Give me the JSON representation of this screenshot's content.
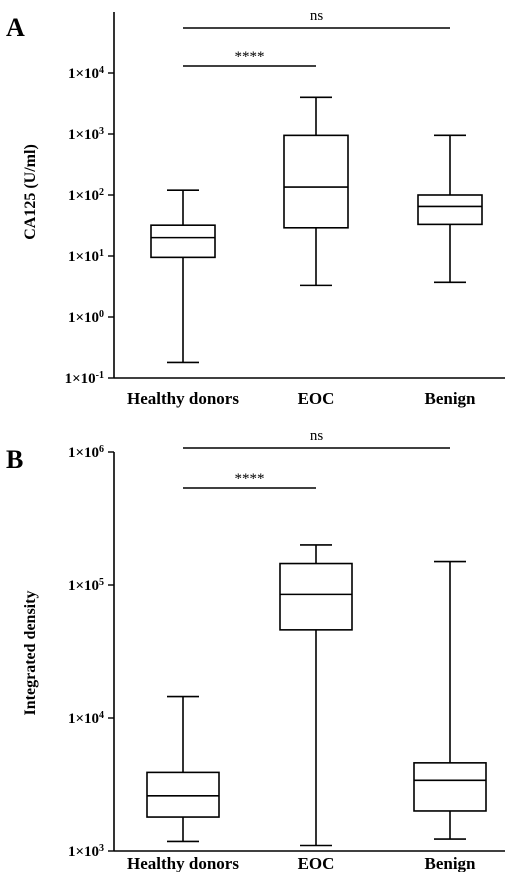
{
  "chart_data": [
    {
      "type": "box",
      "panel": "A",
      "ylabel": "CA125 (U/ml)",
      "yscale": "log",
      "ylim": [
        0.1,
        100000
      ],
      "ytick_labels": [
        {
          "value": 0.1,
          "base": "1×10",
          "exp": "-1"
        },
        {
          "value": 1,
          "base": "1×10",
          "exp": "0"
        },
        {
          "value": 10,
          "base": "1×10",
          "exp": "1"
        },
        {
          "value": 100,
          "base": "1×10",
          "exp": "2"
        },
        {
          "value": 1000,
          "base": "1×10",
          "exp": "3"
        },
        {
          "value": 10000,
          "base": "1×10",
          "exp": "4"
        }
      ],
      "categories": [
        "Healthy donors",
        "EOC",
        "Benign"
      ],
      "boxes": [
        {
          "category": "Healthy donors",
          "min": 0.18,
          "q1": 9.5,
          "median": 20,
          "q3": 32,
          "max": 120
        },
        {
          "category": "EOC",
          "min": 3.3,
          "q1": 29,
          "median": 135,
          "q3": 950,
          "max": 4000
        },
        {
          "category": "Benign",
          "min": 3.7,
          "q1": 33,
          "median": 65,
          "q3": 100,
          "max": 950
        }
      ],
      "comparisons": [
        {
          "label": "****",
          "from": "Healthy donors",
          "to": "EOC"
        },
        {
          "label": "ns",
          "from": "Healthy donors",
          "to": "Benign"
        }
      ]
    },
    {
      "type": "box",
      "panel": "B",
      "ylabel": "Integrated density",
      "yscale": "log",
      "ylim": [
        1000,
        1000000
      ],
      "ytick_labels": [
        {
          "value": 1000,
          "base": "1×10",
          "exp": "3"
        },
        {
          "value": 10000,
          "base": "1×10",
          "exp": "4"
        },
        {
          "value": 100000,
          "base": "1×10",
          "exp": "5"
        },
        {
          "value": 1000000,
          "base": "1×10",
          "exp": "6"
        }
      ],
      "categories": [
        "Healthy donors",
        "EOC",
        "Benign"
      ],
      "boxes": [
        {
          "category": "Healthy donors",
          "min": 1180,
          "q1": 1800,
          "median": 2600,
          "q3": 3900,
          "max": 14500
        },
        {
          "category": "EOC",
          "min": 1100,
          "q1": 46000,
          "median": 85000,
          "q3": 145000,
          "max": 200000
        },
        {
          "category": "Benign",
          "min": 1230,
          "q1": 2000,
          "median": 3400,
          "q3": 4600,
          "max": 150000
        }
      ],
      "comparisons": [
        {
          "label": "****",
          "from": "Healthy donors",
          "to": "EOC"
        },
        {
          "label": "ns",
          "from": "Healthy donors",
          "to": "Benign"
        }
      ]
    }
  ]
}
